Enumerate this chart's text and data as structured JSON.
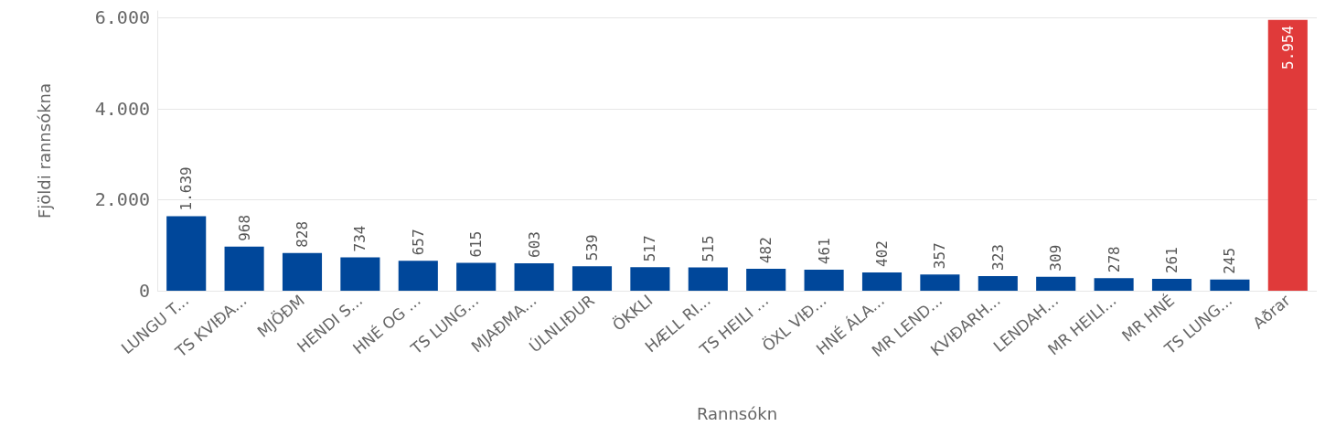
{
  "chart_data": {
    "type": "bar",
    "xlabel": "Rannsókn",
    "ylabel": "Fjöldi rannsókna",
    "categories": [
      "LUNGU T...",
      "TS KVIÐA...",
      "MJÖÐM",
      "HENDI S...",
      "HNÉ OG ...",
      "TS LUNG...",
      "MJAÐMA...",
      "ÚLNLIÐUR",
      "ÖKKLI",
      "HÆLL RI...",
      "TS HEILI ...",
      "ÖXL VIÐ...",
      "HNÉ ÁLA...",
      "MR LEND...",
      "KVIÐARH...",
      "LENDAH...",
      "MR HEILI...",
      "MR HNÉ",
      "TS LUNG...",
      "Aðrar"
    ],
    "values": [
      1639,
      968,
      828,
      734,
      657,
      615,
      603,
      539,
      517,
      515,
      482,
      461,
      402,
      357,
      323,
      309,
      278,
      261,
      245,
      5954
    ],
    "colors": [
      "#00479a",
      "#00479a",
      "#00479a",
      "#00479a",
      "#00479a",
      "#00479a",
      "#00479a",
      "#00479a",
      "#00479a",
      "#00479a",
      "#00479a",
      "#00479a",
      "#00479a",
      "#00479a",
      "#00479a",
      "#00479a",
      "#00479a",
      "#00479a",
      "#00479a",
      "#e03a3a"
    ],
    "value_labels": [
      "1.639",
      "968",
      "828",
      "734",
      "657",
      "615",
      "603",
      "539",
      "517",
      "515",
      "482",
      "461",
      "402",
      "357",
      "323",
      "309",
      "278",
      "261",
      "245",
      "5.954"
    ],
    "ylim": [
      0,
      6150
    ],
    "yticks": [
      {
        "value": 0,
        "label": "0"
      },
      {
        "value": 2000,
        "label": "2.000"
      },
      {
        "value": 4000,
        "label": "4.000"
      },
      {
        "value": 6000,
        "label": "6.000"
      }
    ],
    "grid": "y"
  }
}
